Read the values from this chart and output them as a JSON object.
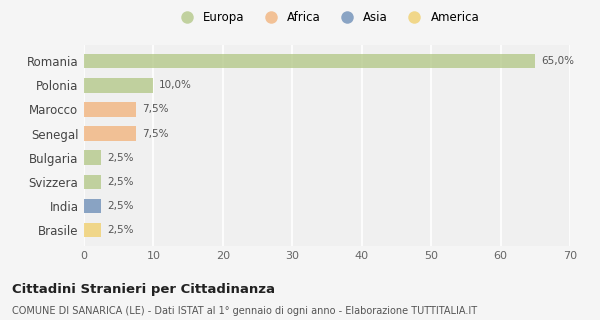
{
  "countries": [
    "Romania",
    "Polonia",
    "Marocco",
    "Senegal",
    "Bulgaria",
    "Svizzera",
    "India",
    "Brasile"
  ],
  "values": [
    65.0,
    10.0,
    7.5,
    7.5,
    2.5,
    2.5,
    2.5,
    2.5
  ],
  "labels": [
    "65,0%",
    "10,0%",
    "7,5%",
    "7,5%",
    "2,5%",
    "2,5%",
    "2,5%",
    "2,5%"
  ],
  "colors": [
    "#b5c98a",
    "#b5c98a",
    "#f2b47e",
    "#f2b47e",
    "#b5c98a",
    "#b5c98a",
    "#7090b8",
    "#f0d070"
  ],
  "legend_labels": [
    "Europa",
    "Africa",
    "Asia",
    "America"
  ],
  "legend_colors": [
    "#b5c98a",
    "#f2b47e",
    "#7090b8",
    "#f0d070"
  ],
  "xlim": [
    0,
    70
  ],
  "xticks": [
    0,
    10,
    20,
    30,
    40,
    50,
    60,
    70
  ],
  "title": "Cittadini Stranieri per Cittadinanza",
  "subtitle": "COMUNE DI SANARICA (LE) - Dati ISTAT al 1° gennaio di ogni anno - Elaborazione TUTTITALIA.IT",
  "bg_color": "#f5f5f5",
  "plot_bg_color": "#f0f0f0",
  "grid_color": "#ffffff",
  "bar_alpha": 0.8
}
